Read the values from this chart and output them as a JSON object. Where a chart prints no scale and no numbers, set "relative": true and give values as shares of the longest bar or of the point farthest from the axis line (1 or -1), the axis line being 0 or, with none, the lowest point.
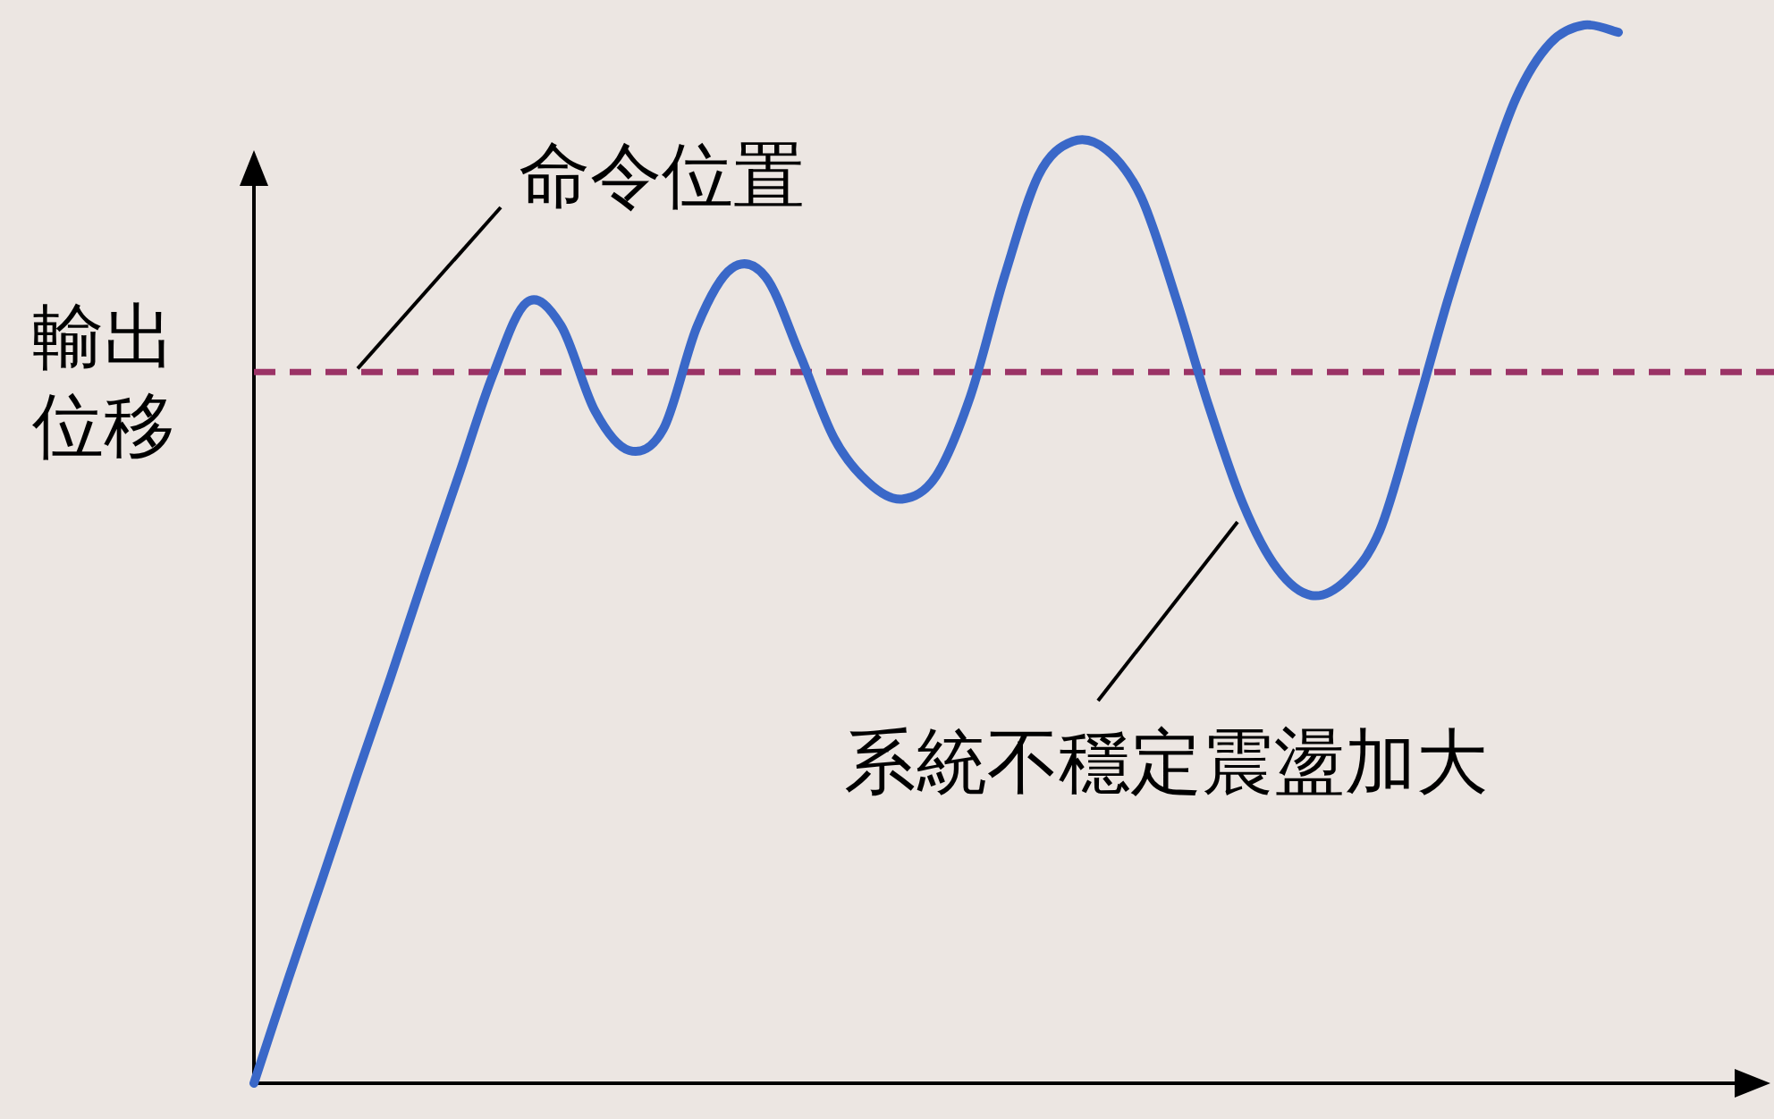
{
  "chart_data": {
    "type": "line",
    "relative": true,
    "ylabel": "輸出位移",
    "categories": [
      null,
      null,
      null,
      null,
      null,
      null,
      null,
      null,
      null,
      null,
      null,
      null,
      null,
      null,
      null,
      null,
      null,
      null,
      null,
      null,
      null,
      null,
      null,
      null,
      null,
      null,
      null,
      null,
      null,
      null,
      null,
      null,
      null,
      null,
      null,
      null,
      null,
      null,
      null,
      null,
      null
    ],
    "series": [
      {
        "color": "#3a68c8",
        "values": [
          0,
          0.098,
          0.193,
          0.289,
          0.383,
          0.48,
          0.574,
          0.669,
          0.738,
          0.716,
          0.635,
          0.598,
          0.618,
          0.716,
          0.77,
          0.762,
          0.689,
          0.61,
          0.568,
          0.552,
          0.574,
          0.649,
          0.762,
          0.858,
          0.89,
          0.882,
          0.838,
          0.745,
          0.639,
          0.547,
          0.486,
          0.461,
          0.475,
          0.522,
          0.627,
          0.74,
          0.841,
          0.931,
          0.983,
          1.0,
          0.993
        ]
      }
    ],
    "ref_lines": [
      {
        "axis": "y",
        "value": 0.672,
        "label": "命令位置",
        "color": "#9b3366",
        "line_style": "dashed"
      }
    ],
    "annotations": [
      "系統不穩定震盪加大"
    ]
  }
}
